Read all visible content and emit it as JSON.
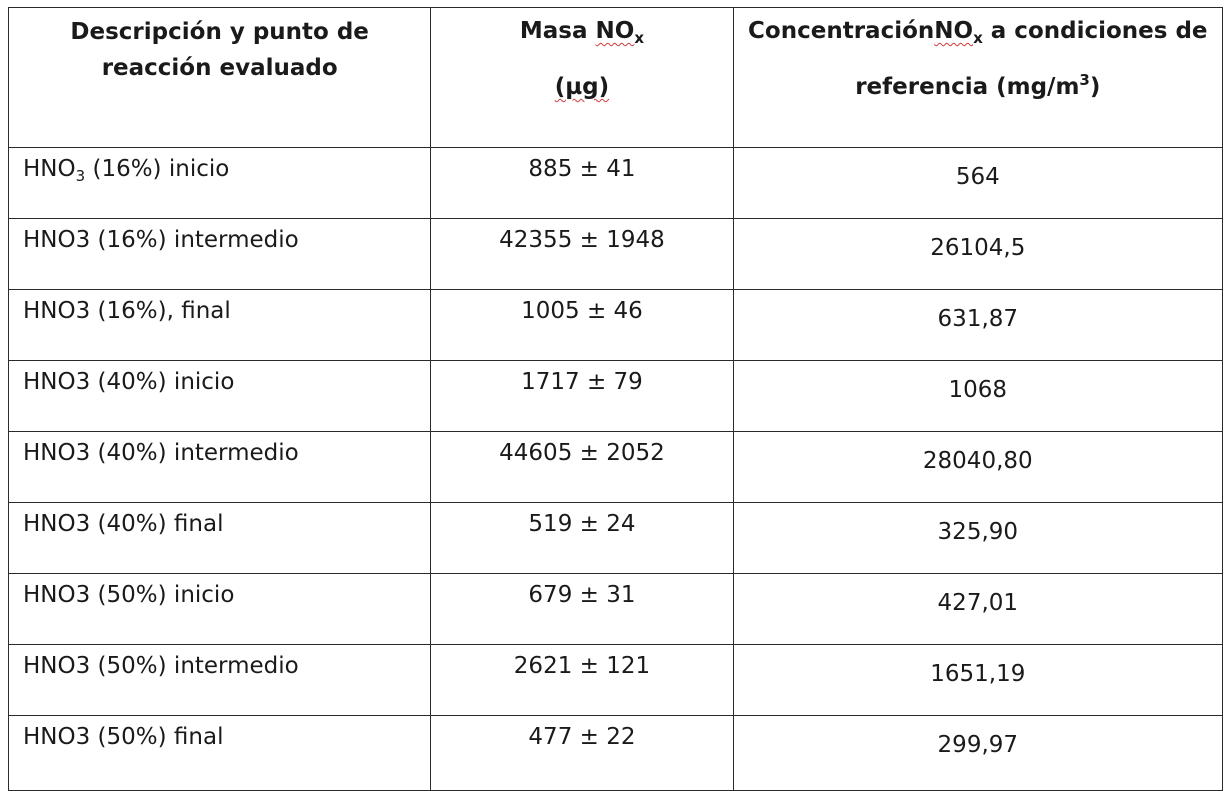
{
  "table": {
    "headers": {
      "col1_line1": "Descripción y punto de",
      "col1_line2": "reacción evaluado",
      "col2_word": "Masa",
      "col2_chem": "NO",
      "col2_sub": "x",
      "col2_unit": "(µg)",
      "col3_pre": "Concentración",
      "col3_chem": "NO",
      "col3_sub": "x",
      "col3_post": "a condiciones de",
      "col3_line2": "referencia (mg/m",
      "col3_sup": "3",
      "col3_close": ")"
    },
    "first_row_label": {
      "chem": "HNO",
      "sub": "3",
      "rest": " (16%) inicio"
    },
    "rows": [
      {
        "desc": "HNO3 (16%) inicio",
        "masa": "885 ± 41",
        "conc": "564"
      },
      {
        "desc": "HNO3 (16%) intermedio",
        "masa": "42355 ± 1948",
        "conc": "26104,5"
      },
      {
        "desc": "HNO3 (16%), final",
        "masa": "1005 ± 46",
        "conc": "631,87"
      },
      {
        "desc": "HNO3 (40%) inicio",
        "masa": "1717 ± 79",
        "conc": "1068"
      },
      {
        "desc": "HNO3 (40%) intermedio",
        "masa": "44605 ± 2052",
        "conc": "28040,80"
      },
      {
        "desc": "HNO3 (40%) final",
        "masa": "519 ± 24",
        "conc": "325,90"
      },
      {
        "desc": "HNO3 (50%) inicio",
        "masa": "679 ± 31",
        "conc": "427,01"
      },
      {
        "desc": "HNO3 (50%) intermedio",
        "masa": "2621 ± 121",
        "conc": "1651,19"
      },
      {
        "desc": "HNO3 (50%) final",
        "masa": "477 ± 22",
        "conc": "299,97"
      }
    ]
  }
}
